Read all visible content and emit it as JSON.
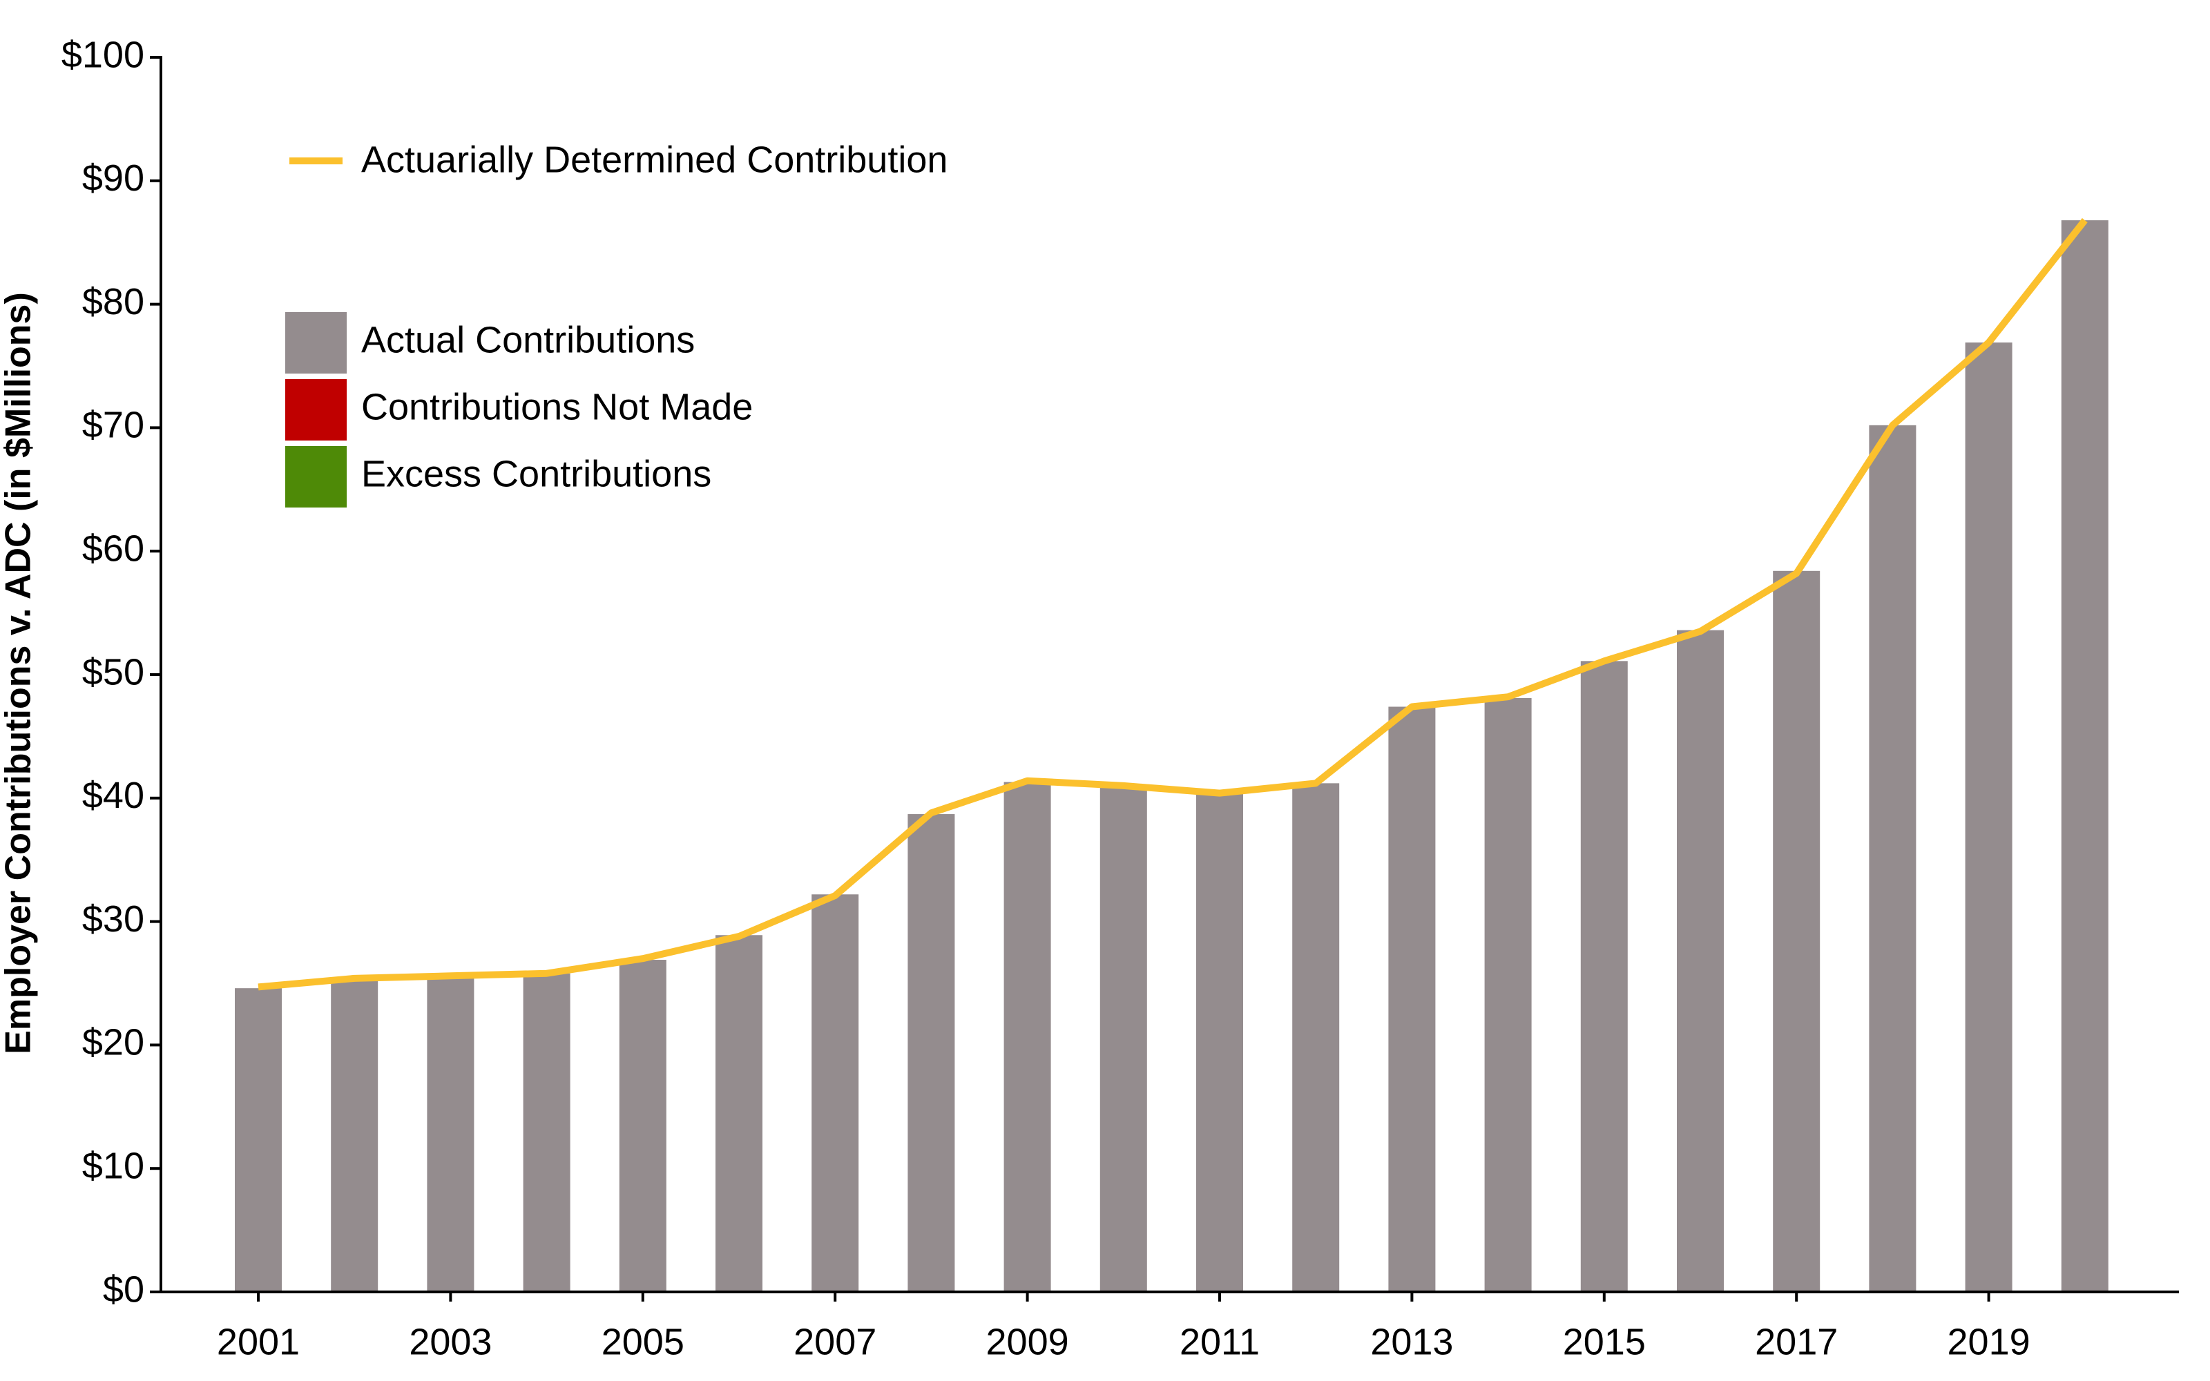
{
  "chart_data": {
    "type": "bar",
    "y_label": "Employer Contributions v. ADC (in $Millions)",
    "categories": [
      "2001",
      null,
      "2003",
      null,
      "2005",
      null,
      "2007",
      null,
      "2009",
      null,
      "2011",
      null,
      "2013",
      null,
      "2015",
      null,
      "2017",
      null,
      "2019",
      null
    ],
    "series": [
      {
        "name": "Actual Contributions",
        "color": "#948c8e",
        "type": "bar",
        "values": [
          24.6,
          25.4,
          25.5,
          25.8,
          26.9,
          28.9,
          32.2,
          38.7,
          41.3,
          41.0,
          40.4,
          41.2,
          47.4,
          48.1,
          51.1,
          53.6,
          58.4,
          70.2,
          76.9,
          86.8
        ]
      },
      {
        "name": "Contributions Not Made",
        "color": "#c00000",
        "type": "bar",
        "values": [
          null,
          null,
          null,
          null,
          null,
          null,
          null,
          null,
          null,
          null,
          null,
          null,
          null,
          null,
          null,
          null,
          null,
          null,
          null,
          null
        ]
      },
      {
        "name": "Excess Contributions",
        "color": "#4e8a07",
        "type": "bar",
        "values": [
          null,
          null,
          null,
          null,
          null,
          null,
          null,
          null,
          null,
          null,
          null,
          null,
          null,
          null,
          null,
          null,
          null,
          null,
          null,
          null
        ]
      },
      {
        "name": "Actuarially Determined Contribution",
        "color": "#fbc02d",
        "type": "line",
        "values": [
          24.7,
          25.4,
          25.6,
          25.8,
          27.0,
          28.8,
          32.1,
          38.8,
          41.4,
          41.0,
          40.4,
          41.2,
          47.4,
          48.2,
          51.1,
          53.5,
          58.2,
          70.2,
          76.9,
          86.8
        ]
      }
    ],
    "ylim": [
      0,
      100
    ],
    "yticks": [
      {
        "value": 0,
        "label": "$0"
      },
      {
        "value": 10,
        "label": "$10"
      },
      {
        "value": 20,
        "label": "$20"
      },
      {
        "value": 30,
        "label": "$30"
      },
      {
        "value": 40,
        "label": "$40"
      },
      {
        "value": 50,
        "label": "$50"
      },
      {
        "value": 60,
        "label": "$60"
      },
      {
        "value": 70,
        "label": "$70"
      },
      {
        "value": 80,
        "label": "$80"
      },
      {
        "value": 90,
        "label": "$90"
      },
      {
        "value": 100,
        "label": "$100"
      }
    ],
    "grid": false
  }
}
